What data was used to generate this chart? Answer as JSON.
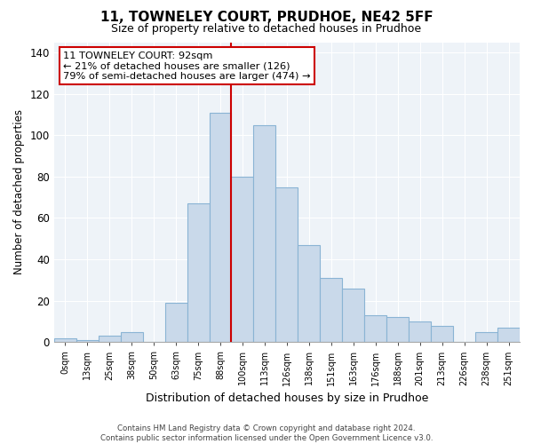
{
  "title": "11, TOWNELEY COURT, PRUDHOE, NE42 5FF",
  "subtitle": "Size of property relative to detached houses in Prudhoe",
  "xlabel": "Distribution of detached houses by size in Prudhoe",
  "ylabel": "Number of detached properties",
  "bin_labels": [
    "0sqm",
    "13sqm",
    "25sqm",
    "38sqm",
    "50sqm",
    "63sqm",
    "75sqm",
    "88sqm",
    "100sqm",
    "113sqm",
    "126sqm",
    "138sqm",
    "151sqm",
    "163sqm",
    "176sqm",
    "188sqm",
    "201sqm",
    "213sqm",
    "226sqm",
    "238sqm",
    "251sqm"
  ],
  "bar_values": [
    2,
    1,
    3,
    5,
    0,
    19,
    67,
    111,
    80,
    105,
    75,
    47,
    31,
    26,
    13,
    12,
    10,
    8,
    0,
    5,
    7
  ],
  "bar_color": "#c9d9ea",
  "bar_edgecolor": "#8ab4d4",
  "vline_index": 7,
  "vline_color": "#cc0000",
  "ylim": [
    0,
    145
  ],
  "yticks": [
    0,
    20,
    40,
    60,
    80,
    100,
    120,
    140
  ],
  "annotation_title": "11 TOWNELEY COURT: 92sqm",
  "annotation_line1": "← 21% of detached houses are smaller (126)",
  "annotation_line2": "79% of semi-detached houses are larger (474) →",
  "annotation_box_color": "#ffffff",
  "annotation_box_edgecolor": "#cc0000",
  "footer_line1": "Contains HM Land Registry data © Crown copyright and database right 2024.",
  "footer_line2": "Contains public sector information licensed under the Open Government Licence v3.0.",
  "background_color": "#ffffff",
  "plot_bg_color": "#eef3f8",
  "grid_color": "#ffffff"
}
